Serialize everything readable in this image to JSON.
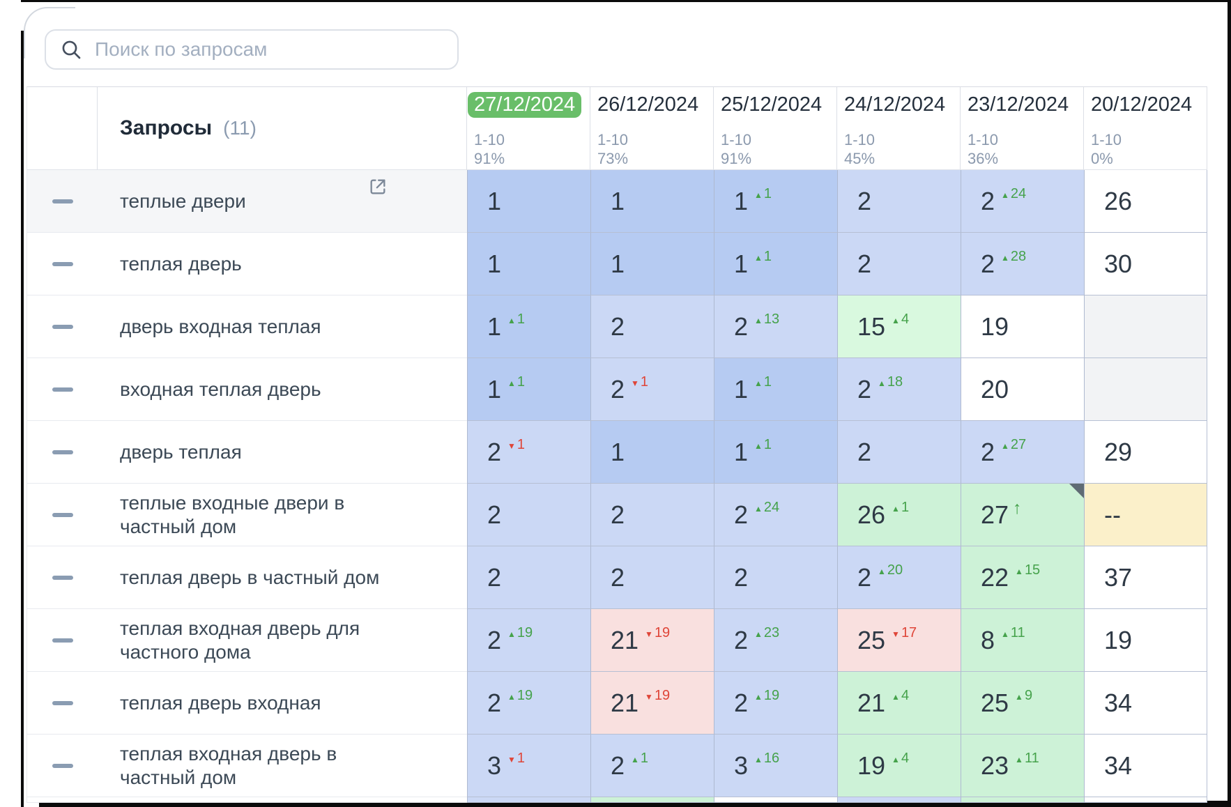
{
  "search": {
    "placeholder": "Поиск по запросам"
  },
  "palette": {
    "blue_dark": "#b6cbf2",
    "blue_light": "#cbd8f5",
    "green": "#cdf2d7",
    "green_pale": "#d9f9df",
    "pink": "#f9e0df",
    "yellow": "#fbf0ca",
    "gray": "#f2f3f5",
    "white": "#ffffff",
    "up_color": "#45a24b",
    "down_color": "#df4538",
    "chip_bg": "#69be69",
    "notch_color": "#5f6b74"
  },
  "table": {
    "title": "Запросы",
    "count": "(11)",
    "columns": [
      {
        "date": "27/12/2024",
        "range": "1-10",
        "percent": "91%",
        "highlighted": true
      },
      {
        "date": "26/12/2024",
        "range": "1-10",
        "percent": "73%",
        "highlighted": false
      },
      {
        "date": "25/12/2024",
        "range": "1-10",
        "percent": "91%",
        "highlighted": false
      },
      {
        "date": "24/12/2024",
        "range": "1-10",
        "percent": "45%",
        "highlighted": false
      },
      {
        "date": "23/12/2024",
        "range": "1-10",
        "percent": "36%",
        "highlighted": false
      },
      {
        "date": "20/12/2024",
        "range": "1-10",
        "percent": "0%",
        "highlighted": false
      }
    ],
    "rows": [
      {
        "kw": "теплые двери",
        "hover": true,
        "cells": [
          {
            "v": "1",
            "bg": "blue_dark"
          },
          {
            "v": "1",
            "bg": "blue_dark"
          },
          {
            "v": "1",
            "d": "1",
            "dir": "up",
            "bg": "blue_dark"
          },
          {
            "v": "2",
            "bg": "blue_light"
          },
          {
            "v": "2",
            "d": "24",
            "dir": "up",
            "bg": "blue_light"
          },
          {
            "v": "26",
            "bg": "white"
          }
        ]
      },
      {
        "kw": "теплая дверь",
        "cells": [
          {
            "v": "1",
            "bg": "blue_dark"
          },
          {
            "v": "1",
            "bg": "blue_dark"
          },
          {
            "v": "1",
            "d": "1",
            "dir": "up",
            "bg": "blue_dark"
          },
          {
            "v": "2",
            "bg": "blue_light"
          },
          {
            "v": "2",
            "d": "28",
            "dir": "up",
            "bg": "blue_light"
          },
          {
            "v": "30",
            "bg": "white"
          }
        ]
      },
      {
        "kw": "дверь входная теплая",
        "cells": [
          {
            "v": "1",
            "d": "1",
            "dir": "up",
            "bg": "blue_dark"
          },
          {
            "v": "2",
            "bg": "blue_light"
          },
          {
            "v": "2",
            "d": "13",
            "dir": "up",
            "bg": "blue_light"
          },
          {
            "v": "15",
            "d": "4",
            "dir": "up",
            "bg": "green_pale"
          },
          {
            "v": "19",
            "bg": "white"
          },
          {
            "bg": "gray"
          }
        ]
      },
      {
        "kw": "входная теплая дверь",
        "cells": [
          {
            "v": "1",
            "d": "1",
            "dir": "up",
            "bg": "blue_dark"
          },
          {
            "v": "2",
            "d": "1",
            "dir": "down",
            "bg": "blue_light"
          },
          {
            "v": "1",
            "d": "1",
            "dir": "up",
            "bg": "blue_dark"
          },
          {
            "v": "2",
            "d": "18",
            "dir": "up",
            "bg": "blue_light"
          },
          {
            "v": "20",
            "bg": "white"
          },
          {
            "bg": "gray"
          }
        ]
      },
      {
        "kw": "дверь теплая",
        "cells": [
          {
            "v": "2",
            "d": "1",
            "dir": "down",
            "bg": "blue_light"
          },
          {
            "v": "1",
            "bg": "blue_dark"
          },
          {
            "v": "1",
            "d": "1",
            "dir": "up",
            "bg": "blue_dark"
          },
          {
            "v": "2",
            "bg": "blue_light"
          },
          {
            "v": "2",
            "d": "27",
            "dir": "up",
            "bg": "blue_light"
          },
          {
            "v": "29",
            "bg": "white"
          }
        ]
      },
      {
        "kw": "теплые входные двери в частный дом",
        "cells": [
          {
            "v": "2",
            "bg": "blue_light"
          },
          {
            "v": "2",
            "bg": "blue_light"
          },
          {
            "v": "2",
            "d": "24",
            "dir": "up",
            "bg": "blue_light"
          },
          {
            "v": "26",
            "d": "1",
            "dir": "up",
            "bg": "green"
          },
          {
            "v": "27",
            "arrow": true,
            "bg": "green",
            "notch": true
          },
          {
            "v": "--",
            "bg": "yellow"
          }
        ]
      },
      {
        "kw": "теплая дверь в частный дом",
        "cells": [
          {
            "v": "2",
            "bg": "blue_light"
          },
          {
            "v": "2",
            "bg": "blue_light"
          },
          {
            "v": "2",
            "bg": "blue_light"
          },
          {
            "v": "2",
            "d": "20",
            "dir": "up",
            "bg": "blue_light"
          },
          {
            "v": "22",
            "d": "15",
            "dir": "up",
            "bg": "green"
          },
          {
            "v": "37",
            "bg": "white"
          }
        ]
      },
      {
        "kw": "теплая входная дверь для частного дома",
        "cells": [
          {
            "v": "2",
            "d": "19",
            "dir": "up",
            "bg": "blue_light"
          },
          {
            "v": "21",
            "d": "19",
            "dir": "down",
            "bg": "pink"
          },
          {
            "v": "2",
            "d": "23",
            "dir": "up",
            "bg": "blue_light"
          },
          {
            "v": "25",
            "d": "17",
            "dir": "down",
            "bg": "pink"
          },
          {
            "v": "8",
            "d": "11",
            "dir": "up",
            "bg": "green"
          },
          {
            "v": "19",
            "bg": "white"
          }
        ]
      },
      {
        "kw": "теплая дверь входная",
        "cells": [
          {
            "v": "2",
            "d": "19",
            "dir": "up",
            "bg": "blue_light"
          },
          {
            "v": "21",
            "d": "19",
            "dir": "down",
            "bg": "pink"
          },
          {
            "v": "2",
            "d": "19",
            "dir": "up",
            "bg": "blue_light"
          },
          {
            "v": "21",
            "d": "4",
            "dir": "up",
            "bg": "green"
          },
          {
            "v": "25",
            "d": "9",
            "dir": "up",
            "bg": "green"
          },
          {
            "v": "34",
            "bg": "white"
          }
        ]
      },
      {
        "kw": "теплая входная дверь в частный дом",
        "cells": [
          {
            "v": "3",
            "d": "1",
            "dir": "down",
            "bg": "blue_light"
          },
          {
            "v": "2",
            "d": "1",
            "dir": "up",
            "bg": "blue_light"
          },
          {
            "v": "3",
            "d": "16",
            "dir": "up",
            "bg": "blue_light"
          },
          {
            "v": "19",
            "d": "4",
            "dir": "up",
            "bg": "green"
          },
          {
            "v": "23",
            "d": "11",
            "dir": "up",
            "bg": "green"
          },
          {
            "v": "34",
            "bg": "white"
          }
        ]
      },
      {
        "kw": "",
        "partial": true,
        "cells": [
          {
            "bg": "blue_light"
          },
          {
            "bg": "green"
          },
          {
            "bg": "white"
          },
          {
            "bg": "blue_light"
          },
          {
            "bg": "green"
          },
          {
            "bg": "white"
          }
        ]
      }
    ]
  }
}
